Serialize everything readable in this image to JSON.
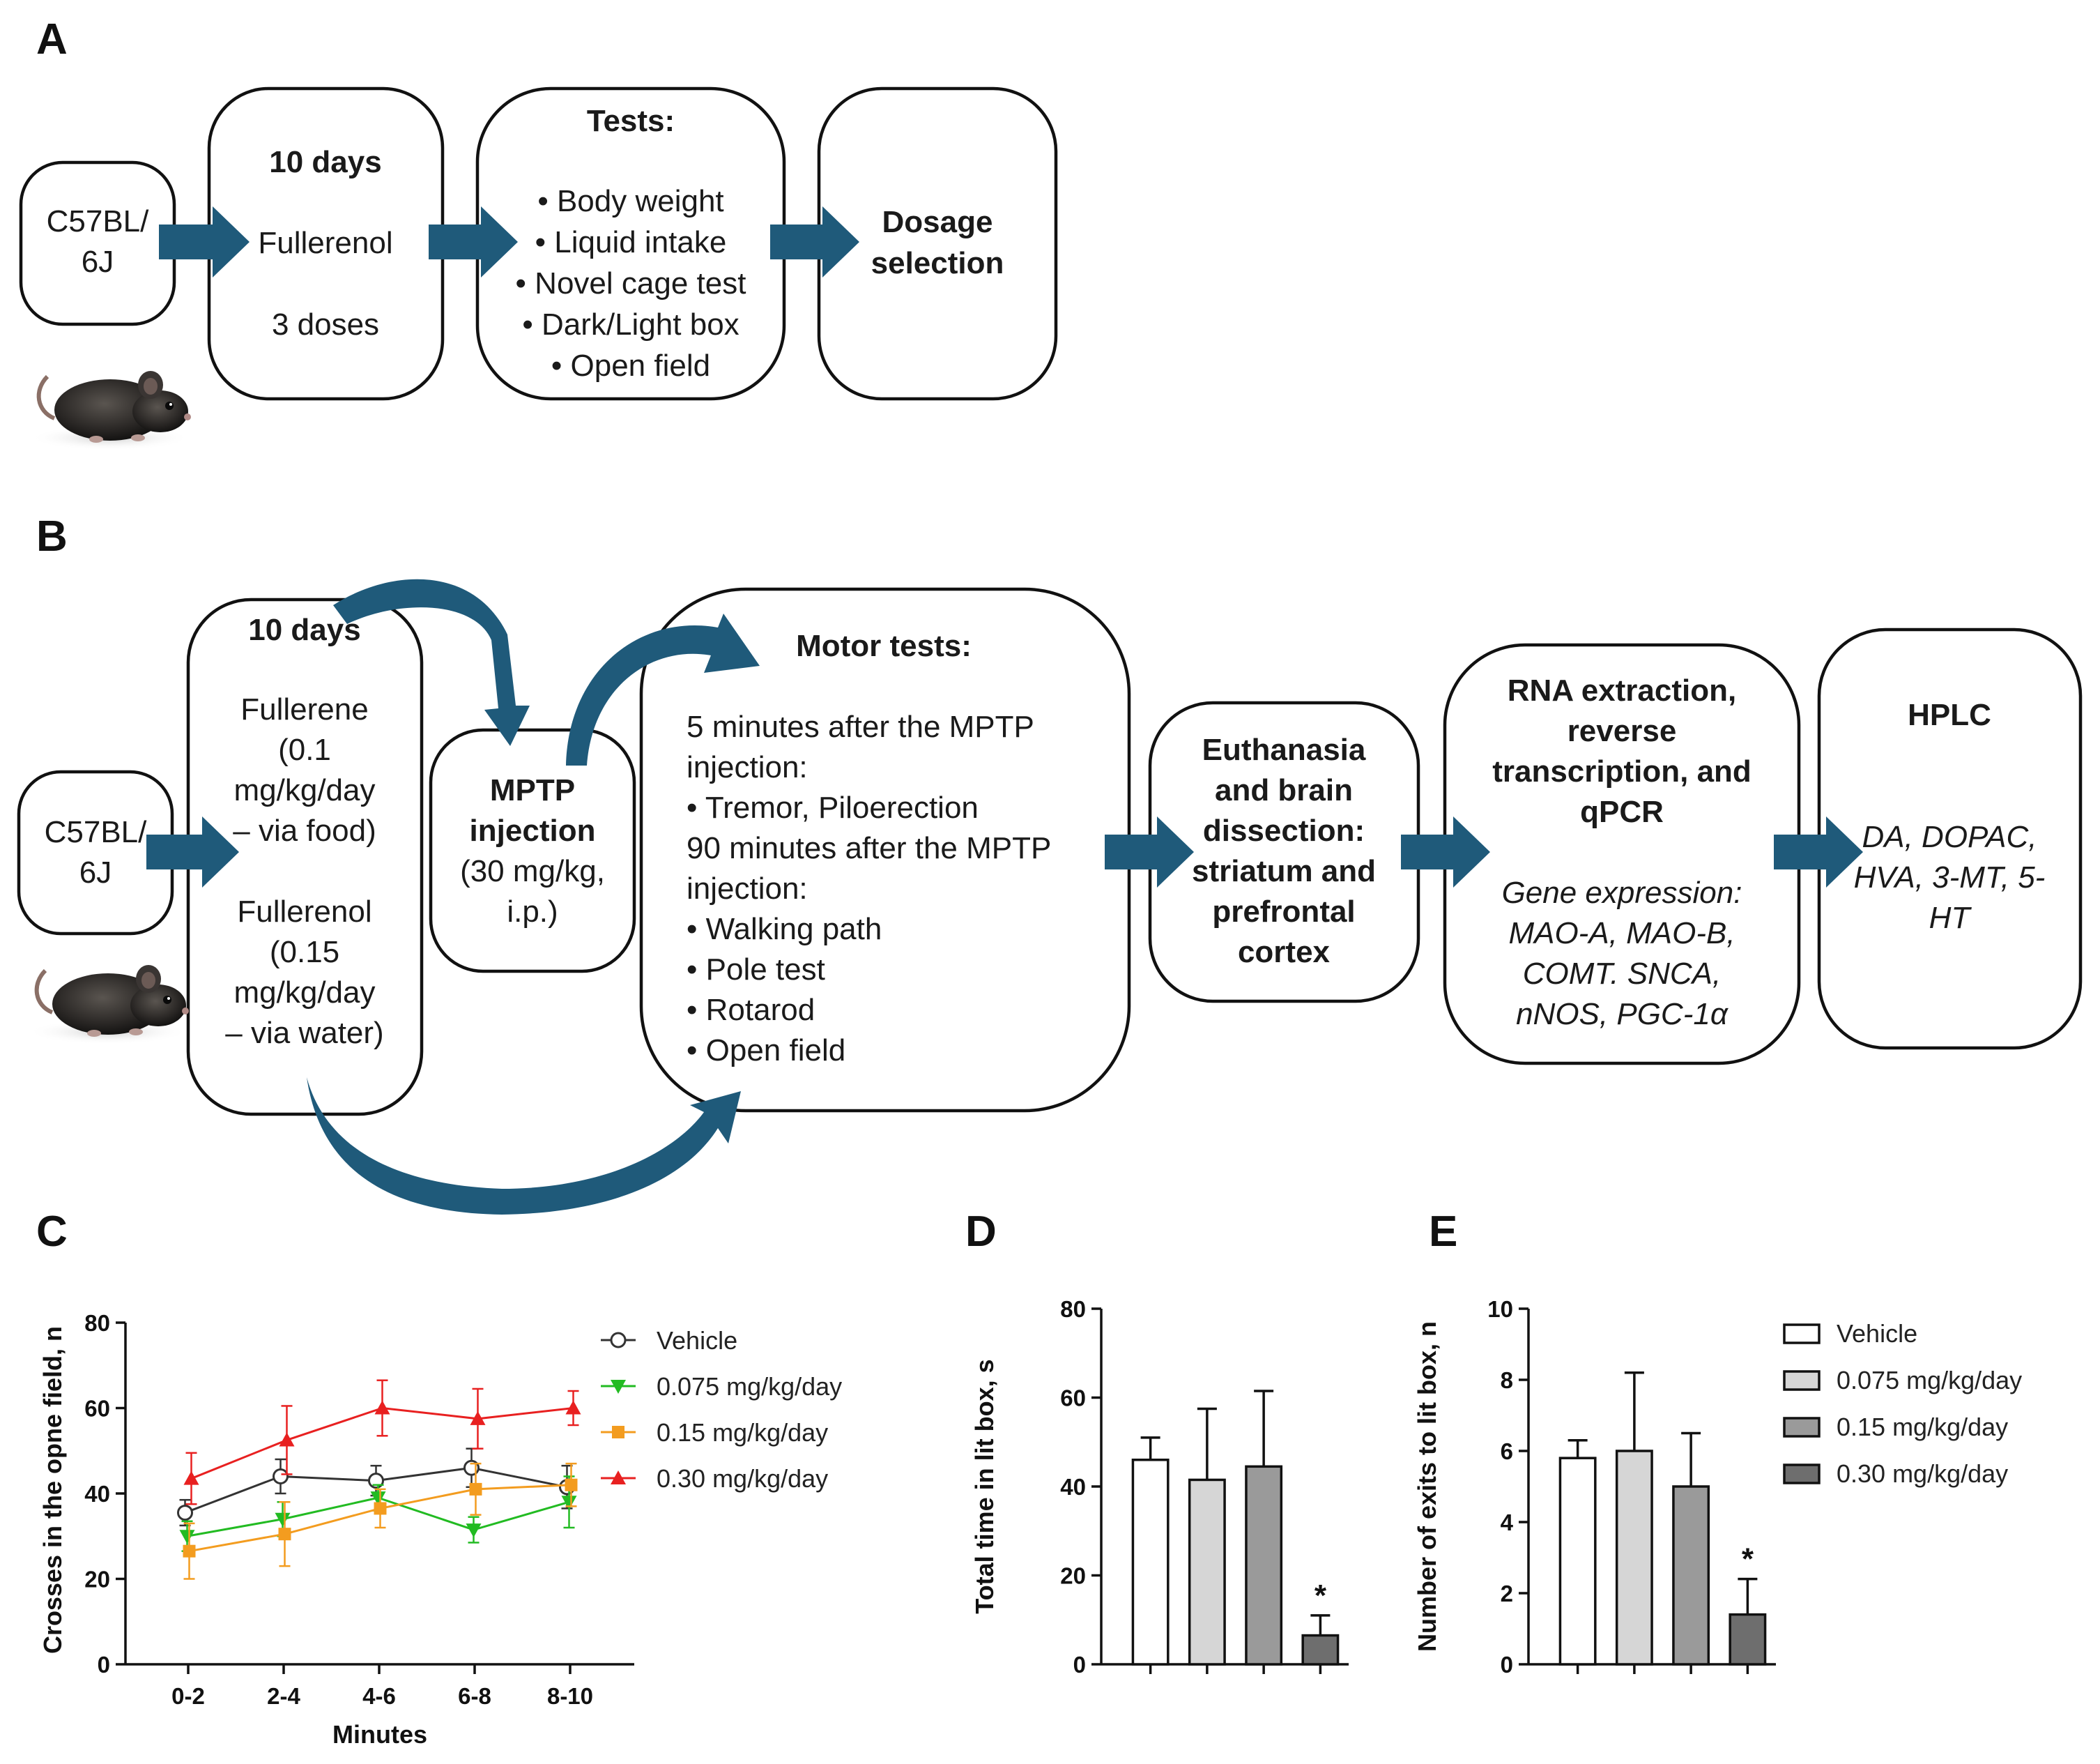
{
  "panels": {
    "a": {
      "label": "A",
      "start_box": [
        "C57BL/",
        "6J"
      ],
      "duration_box": {
        "title": "10 days",
        "line1": "Fullerenol",
        "line2": "3 doses"
      },
      "tests_box": {
        "title": "Tests:",
        "items": [
          "• Body weight",
          "• Liquid intake",
          "• Novel cage test",
          "• Dark/Light box",
          "• Open field"
        ]
      },
      "dosage_box": [
        "Dosage",
        "selection"
      ]
    },
    "b": {
      "label": "B",
      "start_box": [
        "C57BL/",
        "6J"
      ],
      "treatment_box": {
        "title": "10 days",
        "lines": [
          "Fullerene",
          "(0.1",
          "mg/kg/day",
          "– via food)",
          "Fullerenol",
          "(0.15",
          "mg/kg/day",
          "– via water)"
        ]
      },
      "mptp_box": {
        "title_lines": [
          "MPTP",
          "injection"
        ],
        "lines": [
          "(30 mg/kg,",
          "i.p.)"
        ]
      },
      "motor_box": {
        "title": "Motor tests:",
        "lines": [
          "5 minutes after the MPTP",
          "injection:",
          "• Tremor, Piloerection",
          "90 minutes after the MPTP",
          "injection:",
          "• Walking path",
          "• Pole test",
          "• Rotarod",
          "• Open field"
        ]
      },
      "euthanasia_box": [
        "Euthanasia",
        "and brain",
        "dissection:",
        "striatum and",
        "prefrontal",
        "cortex"
      ],
      "rna_box": {
        "title_lines": [
          "RNA extraction,",
          "reverse",
          "transcription, and",
          "qPCR"
        ],
        "italic_lines": [
          "Gene expression:",
          "MAO-A, MAO-B,",
          "COMT. SNCA,",
          "nNOS, PGC-1α"
        ]
      },
      "hplc_box": {
        "title": "HPLC",
        "italic_lines": [
          "DA, DOPAC,",
          "HVA, 3-MT, 5-",
          "HT"
        ]
      }
    },
    "c": {
      "label": "C"
    },
    "d": {
      "label": "D"
    },
    "e": {
      "label": "E"
    }
  },
  "chart_data": [
    {
      "panel": "C",
      "type": "line",
      "categories": [
        "0-2",
        "2-4",
        "4-6",
        "6-8",
        "8-10"
      ],
      "xlabel": "Minutes",
      "ylabel": "Crosses in the opne field, n",
      "ylim": [
        0,
        80
      ],
      "yticks": [
        0,
        20,
        40,
        60,
        80
      ],
      "series": [
        {
          "name": "Vehicle",
          "color": "#333333",
          "marker": "circle-open",
          "values": [
            35.5,
            44,
            43,
            46,
            41.5
          ],
          "errors": [
            3,
            4,
            3.5,
            4.5,
            5
          ]
        },
        {
          "name": "0.075 mg/kg/day",
          "color": "#22bb22",
          "marker": "triangle-down",
          "values": [
            30,
            34,
            39,
            31.5,
            38
          ],
          "errors": [
            3.5,
            4,
            3,
            3,
            6
          ]
        },
        {
          "name": "0.15 mg/kg/day",
          "color": "#f39c1f",
          "marker": "square",
          "values": [
            26.5,
            30.5,
            36.5,
            41,
            42
          ],
          "errors": [
            6.5,
            7.5,
            4.5,
            6,
            5
          ]
        },
        {
          "name": "0.30 mg/kg/day",
          "color": "#e82020",
          "marker": "triangle-up",
          "values": [
            43.5,
            52.5,
            60,
            57.5,
            60
          ],
          "errors": [
            6,
            8,
            6.5,
            7,
            4
          ]
        }
      ]
    },
    {
      "panel": "D",
      "type": "bar",
      "categories": [
        "Vehicle",
        "0.075 mg/kg/day",
        "0.15 mg/kg/day",
        "0.30 mg/kg/day"
      ],
      "ylabel": "Total time in lit box, s",
      "ylim": [
        0,
        80
      ],
      "yticks": [
        0,
        20,
        40,
        60,
        80
      ],
      "values": [
        46,
        41.5,
        44.5,
        6.5
      ],
      "errors": [
        5,
        16,
        17,
        4.5
      ],
      "significance": [
        "",
        "",
        "",
        "*"
      ],
      "colors": [
        "#ffffff",
        "#d6d6d6",
        "#9a9a9a",
        "#6e6e6e"
      ]
    },
    {
      "panel": "E",
      "type": "bar",
      "categories": [
        "Vehicle",
        "0.075 mg/kg/day",
        "0.15 mg/kg/day",
        "0.30 mg/kg/day"
      ],
      "ylabel": "Number of exits to lit box, n",
      "ylim": [
        0,
        10
      ],
      "yticks": [
        0,
        2,
        4,
        6,
        8,
        10
      ],
      "values": [
        5.8,
        6.0,
        5.0,
        1.4
      ],
      "errors": [
        0.5,
        2.2,
        1.5,
        1.0
      ],
      "significance": [
        "",
        "",
        "",
        "*"
      ],
      "colors": [
        "#ffffff",
        "#d6d6d6",
        "#9a9a9a",
        "#6e6e6e"
      ],
      "legend": [
        "Vehicle",
        "0.075 mg/kg/day",
        "0.15 mg/kg/day",
        "0.30 mg/kg/day"
      ]
    }
  ]
}
